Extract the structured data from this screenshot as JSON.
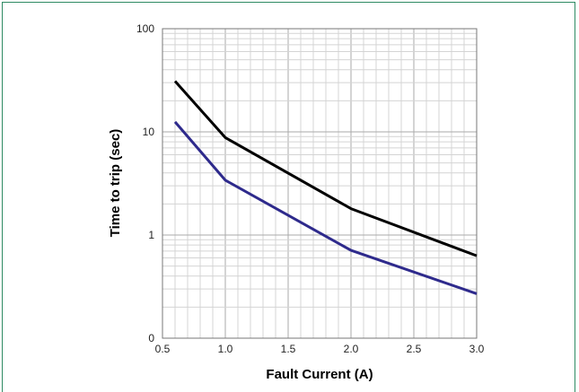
{
  "chart_data": {
    "type": "line",
    "xlabel": "Fault Current (A)",
    "ylabel": "Time to trip (sec)",
    "xlim": [
      0.5,
      3.0
    ],
    "ylim_log_decades": [
      0.1,
      100
    ],
    "y_scale": "log",
    "x_ticks": [
      "0.5",
      "1.0",
      "1.5",
      "2.0",
      "2.5",
      "3.0"
    ],
    "y_ticks": [
      "0",
      "1",
      "10",
      "100"
    ],
    "grid": true,
    "series": [
      {
        "color": "#000000",
        "x": [
          0.6,
          1.0,
          2.0,
          3.0
        ],
        "values": [
          31,
          8.8,
          1.8,
          0.63
        ]
      },
      {
        "color": "#2e2a8c",
        "x": [
          0.6,
          1.0,
          2.0,
          3.0
        ],
        "values": [
          12.5,
          3.4,
          0.71,
          0.27
        ]
      }
    ]
  }
}
